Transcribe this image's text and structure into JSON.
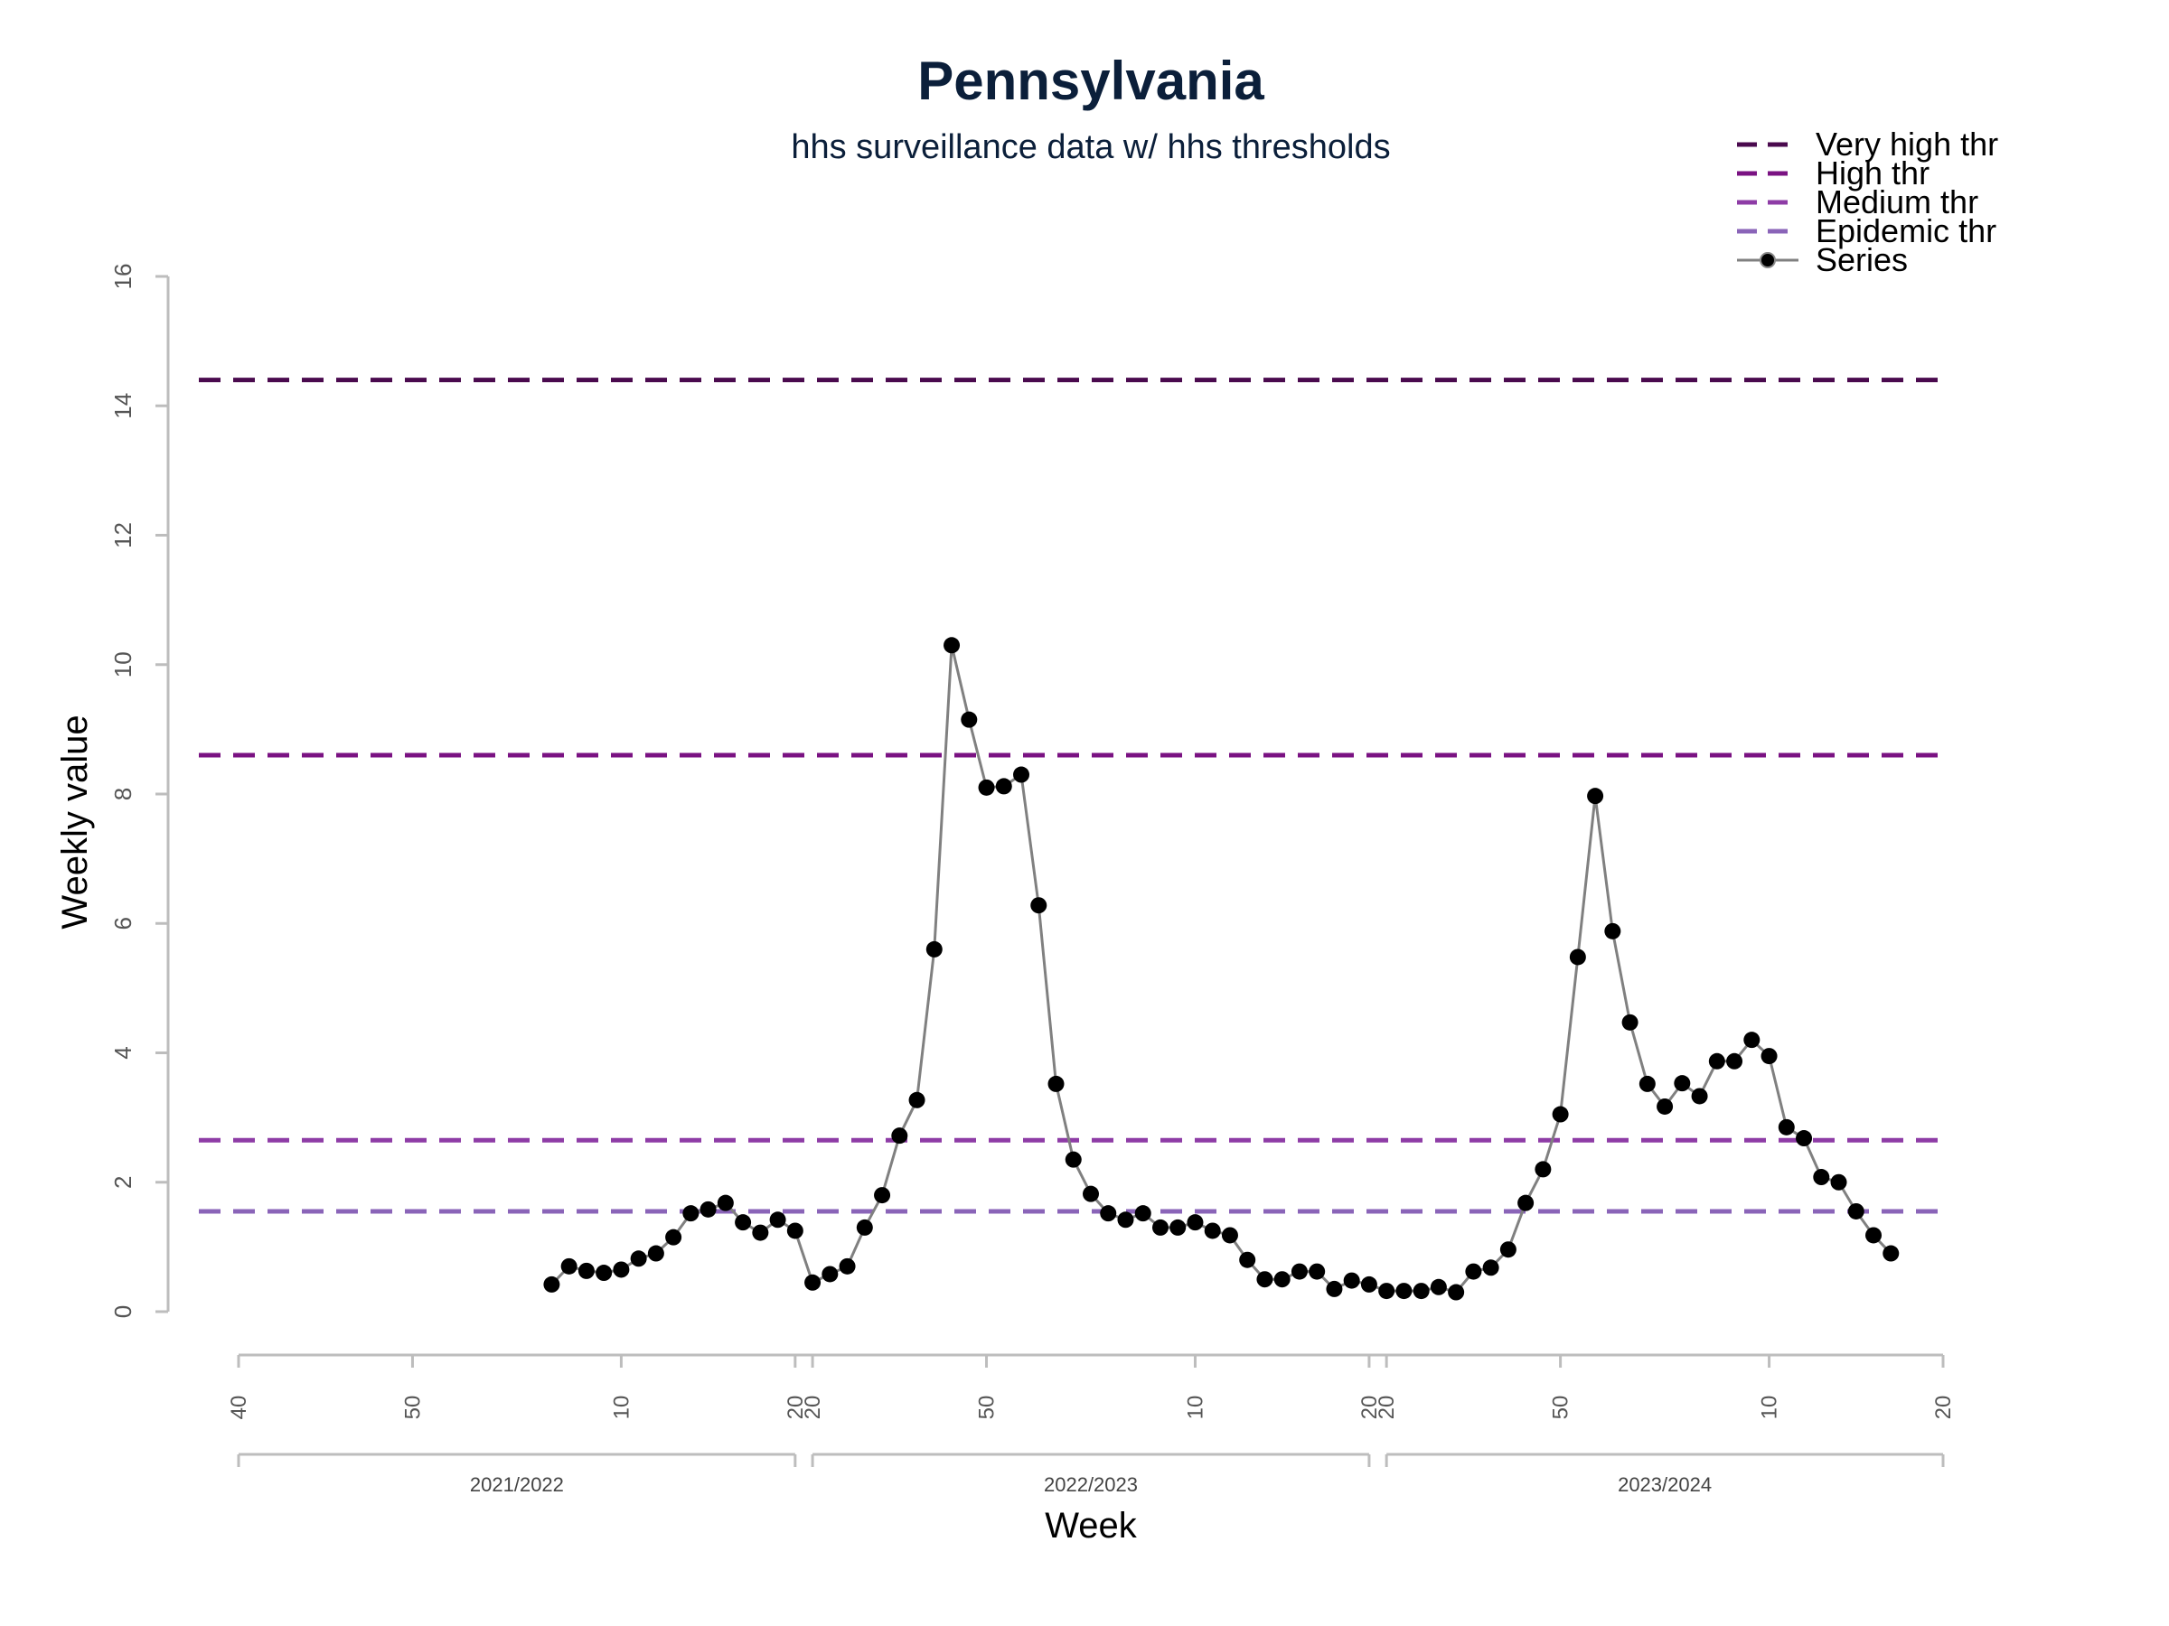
{
  "chart_data": {
    "type": "line",
    "title": "Pennsylvania",
    "subtitle": "hhs surveillance data w/ hhs thresholds",
    "xlabel": "Week",
    "ylabel": "Weekly value",
    "ylim": [
      0,
      16
    ],
    "y_ticks": [
      "0",
      "2",
      "4",
      "6",
      "8",
      "10",
      "12",
      "14",
      "16"
    ],
    "x_tick_labels": [
      {
        "idx": 0,
        "label": "40"
      },
      {
        "idx": 10,
        "label": "50"
      },
      {
        "idx": 22,
        "label": "10"
      },
      {
        "idx": 32,
        "label": "20"
      },
      {
        "idx": 33,
        "label": "20"
      },
      {
        "idx": 43,
        "label": "50"
      },
      {
        "idx": 55,
        "label": "10"
      },
      {
        "idx": 65,
        "label": "20"
      },
      {
        "idx": 66,
        "label": "20"
      },
      {
        "idx": 76,
        "label": "50"
      },
      {
        "idx": 88,
        "label": "10"
      },
      {
        "idx": 98,
        "label": "20"
      }
    ],
    "seasons": [
      {
        "label": "2021/2022",
        "start": 0,
        "end": 32
      },
      {
        "label": "2022/2023",
        "start": 33,
        "end": 65
      },
      {
        "label": "2023/2024",
        "start": 66,
        "end": 98
      }
    ],
    "thresholds": [
      {
        "name": "Very high thr",
        "value": 14.4,
        "color": "#4a0a4e"
      },
      {
        "name": "High thr",
        "value": 8.6,
        "color": "#7a1282"
      },
      {
        "name": "Medium thr",
        "value": 2.65,
        "color": "#8e3ca6"
      },
      {
        "name": "Epidemic thr",
        "value": 1.55,
        "color": "#8a64b8"
      }
    ],
    "series": [
      {
        "name": "Series",
        "color": "#808080",
        "start_idx": 18,
        "values": [
          0.42,
          0.7,
          0.63,
          0.6,
          0.65,
          0.82,
          0.9,
          1.15,
          1.52,
          1.58,
          1.68,
          1.38,
          1.22,
          1.42,
          1.25,
          0.45,
          0.58,
          0.7,
          1.3,
          1.8,
          2.72,
          3.27,
          5.6,
          10.3,
          9.15,
          8.1,
          8.12,
          8.3,
          6.28,
          3.52,
          2.35,
          1.82,
          1.52,
          1.42,
          1.52,
          1.3,
          1.3,
          1.38,
          1.25,
          1.18,
          0.8,
          0.5,
          0.5,
          0.62,
          0.62,
          0.35,
          0.48,
          0.42,
          0.32,
          0.32,
          0.32,
          0.38,
          0.3,
          0.62,
          0.68,
          0.96,
          1.68,
          2.2,
          3.05,
          5.48,
          7.97,
          5.88,
          4.47,
          3.52,
          3.17,
          3.53,
          3.33,
          3.87,
          3.87,
          4.2,
          3.95,
          2.85,
          2.68,
          2.08,
          2.0,
          1.55,
          1.18,
          0.9
        ]
      }
    ],
    "legend": {
      "position": "top-right",
      "entries": [
        "Very high thr",
        "High thr",
        "Medium thr",
        "Epidemic thr",
        "Series"
      ]
    }
  }
}
